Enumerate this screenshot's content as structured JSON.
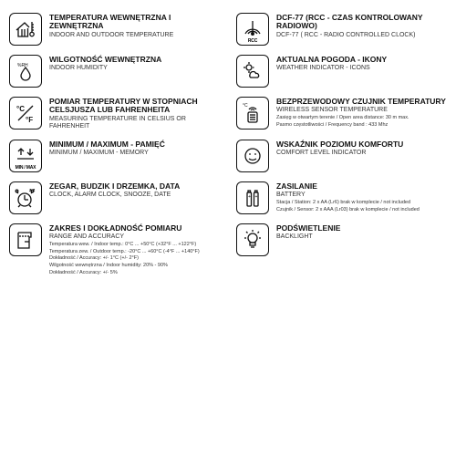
{
  "features": [
    {
      "icon": "house-thermo",
      "title_pl": "TEMPERATURA WEWNĘTRZNA I ZEWNĘTRZNA",
      "title_en": "INDOOR AND OUTDOOR TEMPERATURE",
      "details": []
    },
    {
      "icon": "rcc",
      "icon_caption": "RCC",
      "title_pl": "DCF-77 (RCC - CZAS KONTROLOWANY RADIOWO)",
      "title_en": "DCF-77 ( RCC - RADIO CONTROLLED CLOCK)",
      "details": []
    },
    {
      "icon": "humidity",
      "title_pl": "WILGOTNOŚĆ WEWNĘTRZNA",
      "title_en": "INDOOR HUMIDITY",
      "details": []
    },
    {
      "icon": "weather",
      "title_pl": "AKTUALNA POGODA - IKONY",
      "title_en": "WEATHER INDICATOR - ICONS",
      "details": []
    },
    {
      "icon": "cf",
      "title_pl": "POMIAR TEMPERATURY W STOPNIACH CELSJUSZA LUB FAHRENHEITA",
      "title_en": "MEASURING TEMPERATURE IN CELSIUS OR FAHRENHEIT",
      "details": []
    },
    {
      "icon": "wireless",
      "title_pl": "BEZPRZEWODOWY CZUJNIK TEMPERATURY",
      "title_en": "WIRELESS SENSOR TEMPERATURE",
      "details": [
        "Zasięg w otwartym terenie / Open area distance: 30 m max.",
        "Pasmo częstotliwości / Frequency band : 433 Mhz"
      ]
    },
    {
      "icon": "minmax",
      "icon_caption": "MIN / MAX",
      "title_pl": "MINIMUM / MAXIMUM - PAMIĘĆ",
      "title_en": "MINIMUM / MAXIMUM - MEMORY",
      "details": []
    },
    {
      "icon": "comfort",
      "title_pl": "WSKAŹNIK POZIOMU KOMFORTU",
      "title_en": "COMFORT LEVEL INDICATOR",
      "details": []
    },
    {
      "icon": "alarm",
      "title_pl": "ZEGAR, BUDZIK I DRZEMKA, DATA",
      "title_en": "CLOCK, ALARM CLOCK, SNOOZE, DATE",
      "details": []
    },
    {
      "icon": "battery",
      "title_pl": "ZASILANIE",
      "title_en": "BATTERY",
      "details": [
        "Stacja / Station:  2 x AA (Lr6) brak w komplecie / not included",
        "Czujnik / Sensor:  2 x AAA (Lr03) brak w komplecie / not included"
      ]
    },
    {
      "icon": "range",
      "title_pl": "ZAKRES I DOKŁADNOŚĆ POMIARU",
      "title_en": "RANGE AND ACCURACY",
      "details": [
        "Temperatura wew. / Indoor temp.: 0°C ... +50°C (+32°F ... +122°F)",
        "Temperatura zew. / Outdoor temp.: -20°C ... +60°C (-4°F ... +140°F)",
        "Dokładność / Accuracy: +/- 1°C (+/- 2°F)",
        "Wilgotność wewnętrzna / Indoor humidity: 20% - 90%",
        "Dokładność / Accuracy: +/- 5%"
      ]
    },
    {
      "icon": "backlight",
      "title_pl": "PODŚWIETLENIE",
      "title_en": "BACKLIGHT",
      "details": []
    }
  ],
  "colors": {
    "stroke": "#111111",
    "bg": "#ffffff"
  }
}
